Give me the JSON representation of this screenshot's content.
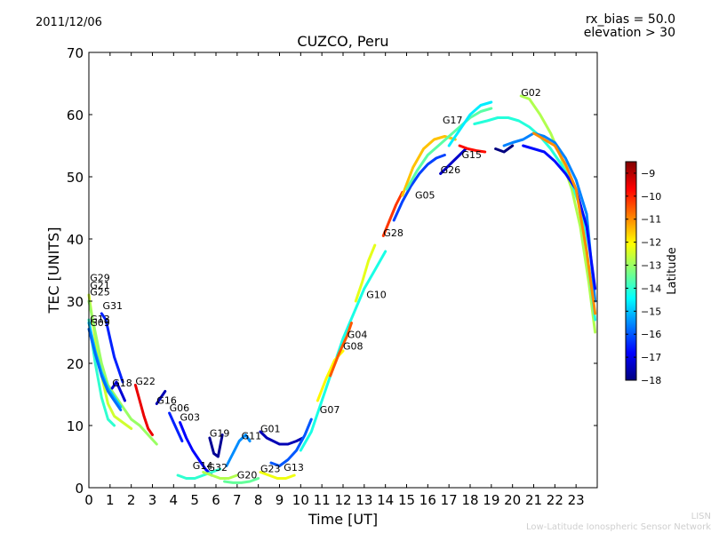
{
  "header": {
    "date": "2011/12/06",
    "bias_note": "rx_bias = 50.0",
    "elevation_note": "elevation > 30"
  },
  "footer": {
    "credit_short": "LISN",
    "credit_long": "Low-Latitude Ionospheric Sensor Network"
  },
  "chart_data": {
    "type": "scatter",
    "title": "CUZCO, Peru",
    "xlabel": "Time [UT]",
    "ylabel": "TEC [UNITS]",
    "xlim": [
      0,
      24
    ],
    "ylim": [
      0,
      70
    ],
    "xticks": [
      0,
      1,
      2,
      3,
      4,
      5,
      6,
      7,
      8,
      9,
      10,
      11,
      12,
      13,
      14,
      15,
      16,
      17,
      18,
      19,
      20,
      21,
      22,
      23
    ],
    "yticks": [
      0,
      10,
      20,
      30,
      40,
      50,
      60,
      70
    ],
    "colorbar": {
      "label": "Latitude",
      "range": [
        -18,
        -8.5
      ],
      "ticks": [
        -9,
        -10,
        -11,
        -12,
        -13,
        -14,
        -15,
        -16,
        -17,
        -18
      ],
      "colors": [
        "#00007f",
        "#0000ff",
        "#007fff",
        "#00ffff",
        "#7fff7f",
        "#ffff00",
        "#ff7f00",
        "#ff0000",
        "#7f0000"
      ]
    },
    "satellite_labels": [
      {
        "name": "G29",
        "x": 0.05,
        "y": 33.2
      },
      {
        "name": "G21",
        "x": 0.05,
        "y": 32.0
      },
      {
        "name": "G25",
        "x": 0.05,
        "y": 30.9
      },
      {
        "name": "G31",
        "x": 0.65,
        "y": 28.7
      },
      {
        "name": "G13",
        "x": 0.05,
        "y": 26.6
      },
      {
        "name": "G09",
        "x": 0.05,
        "y": 26.0
      },
      {
        "name": "G18",
        "x": 1.1,
        "y": 16.3
      },
      {
        "name": "G22",
        "x": 2.2,
        "y": 16.6
      },
      {
        "name": "G16",
        "x": 3.2,
        "y": 13.5
      },
      {
        "name": "G06",
        "x": 3.8,
        "y": 12.3
      },
      {
        "name": "G03",
        "x": 4.3,
        "y": 10.8
      },
      {
        "name": "G19",
        "x": 5.7,
        "y": 8.2
      },
      {
        "name": "G11",
        "x": 7.2,
        "y": 7.8
      },
      {
        "name": "G01",
        "x": 8.1,
        "y": 8.9
      },
      {
        "name": "G14",
        "x": 4.9,
        "y": 3.0
      },
      {
        "name": "G32",
        "x": 5.6,
        "y": 2.7
      },
      {
        "name": "G20",
        "x": 7.0,
        "y": 1.5
      },
      {
        "name": "G23",
        "x": 8.1,
        "y": 2.5
      },
      {
        "name": "G13",
        "x": 9.2,
        "y": 2.7
      },
      {
        "name": "G07",
        "x": 10.9,
        "y": 12.0
      },
      {
        "name": "G08",
        "x": 12.0,
        "y": 22.2
      },
      {
        "name": "G04",
        "x": 12.2,
        "y": 24.1
      },
      {
        "name": "G10",
        "x": 13.1,
        "y": 30.5
      },
      {
        "name": "G28",
        "x": 13.9,
        "y": 40.4
      },
      {
        "name": "G05",
        "x": 15.4,
        "y": 46.5
      },
      {
        "name": "G26",
        "x": 16.6,
        "y": 50.6
      },
      {
        "name": "G15",
        "x": 17.6,
        "y": 53.0
      },
      {
        "name": "G17",
        "x": 16.7,
        "y": 58.6
      },
      {
        "name": "G02",
        "x": 20.4,
        "y": 63.0
      }
    ],
    "series": [
      {
        "name": "G29",
        "latitude": -12.5,
        "x": [
          0.0,
          0.3,
          0.6,
          0.9,
          1.2,
          1.6,
          2.0
        ],
        "y": [
          31.0,
          24.0,
          18.0,
          13.5,
          11.5,
          10.5,
          9.5
        ]
      },
      {
        "name": "G21",
        "latitude": -14.0,
        "x": [
          0.0,
          0.3,
          0.6,
          0.9,
          1.2
        ],
        "y": [
          27.0,
          20.0,
          14.5,
          11.0,
          10.0
        ]
      },
      {
        "name": "G25",
        "latitude": -13.0,
        "x": [
          0.0,
          0.3,
          0.6,
          0.9,
          1.2,
          1.6,
          2.0,
          2.4,
          2.8,
          3.2
        ],
        "y": [
          30.0,
          25.0,
          20.0,
          16.5,
          15.0,
          13.0,
          11.0,
          10.0,
          8.5,
          7.0
        ]
      },
      {
        "name": "G31",
        "latitude": -16.5,
        "x": [
          0.6,
          0.8,
          1.0,
          1.2,
          1.4,
          1.6
        ],
        "y": [
          28.0,
          27.0,
          24.0,
          21.0,
          19.0,
          17.0
        ]
      },
      {
        "name": "G13",
        "latitude": -15.0,
        "x": [
          0.0,
          0.3,
          0.6,
          0.9,
          1.2,
          1.5
        ],
        "y": [
          26.5,
          22.0,
          18.5,
          16.0,
          14.5,
          13.0
        ]
      },
      {
        "name": "G09",
        "latitude": -15.8,
        "x": [
          0.0,
          0.3,
          0.6,
          0.9,
          1.2,
          1.5
        ],
        "y": [
          25.5,
          21.5,
          18.0,
          15.5,
          14.0,
          12.5
        ]
      },
      {
        "name": "G18",
        "latitude": -17.2,
        "x": [
          1.1,
          1.3,
          1.5,
          1.7
        ],
        "y": [
          16.0,
          17.0,
          15.5,
          14.0
        ]
      },
      {
        "name": "G22",
        "latitude": -9.5,
        "x": [
          2.2,
          2.4,
          2.6,
          2.8,
          3.0
        ],
        "y": [
          16.5,
          14.0,
          11.5,
          9.5,
          8.5
        ]
      },
      {
        "name": "G16",
        "latitude": -17.5,
        "x": [
          3.2,
          3.4,
          3.6
        ],
        "y": [
          13.5,
          14.5,
          15.5
        ]
      },
      {
        "name": "G06",
        "latitude": -16.5,
        "x": [
          3.8,
          4.0,
          4.2,
          4.4
        ],
        "y": [
          12.0,
          10.5,
          9.0,
          7.5
        ]
      },
      {
        "name": "G03",
        "latitude": -16.8,
        "x": [
          4.3,
          4.6,
          4.9,
          5.2,
          5.5,
          5.8
        ],
        "y": [
          10.5,
          8.0,
          6.0,
          4.5,
          3.0,
          2.0
        ]
      },
      {
        "name": "G19",
        "latitude": -17.8,
        "x": [
          5.7,
          5.9,
          6.1,
          6.3
        ],
        "y": [
          8.0,
          5.5,
          5.0,
          8.5
        ]
      },
      {
        "name": "G11",
        "latitude": -15.5,
        "x": [
          6.5,
          6.8,
          7.1,
          7.4,
          7.6
        ],
        "y": [
          3.5,
          5.5,
          7.5,
          8.5,
          7.5
        ]
      },
      {
        "name": "G01",
        "latitude": -17.5,
        "x": [
          8.1,
          8.4,
          8.7,
          9.0,
          9.4,
          9.8,
          10.1
        ],
        "y": [
          9.0,
          8.0,
          7.5,
          7.0,
          7.0,
          7.5,
          8.0
        ]
      },
      {
        "name": "G14",
        "latitude": -14.0,
        "x": [
          4.2,
          4.6,
          5.0,
          5.4,
          5.8,
          6.2
        ],
        "y": [
          2.0,
          1.5,
          1.5,
          2.0,
          2.5,
          3.0
        ]
      },
      {
        "name": "G32",
        "latitude": -12.8,
        "x": [
          5.4,
          5.8,
          6.2,
          6.6,
          7.0
        ],
        "y": [
          2.5,
          2.0,
          1.5,
          1.5,
          2.0
        ]
      },
      {
        "name": "G20",
        "latitude": -13.5,
        "x": [
          6.4,
          6.8,
          7.2,
          7.6,
          8.0
        ],
        "y": [
          1.0,
          0.8,
          0.8,
          1.0,
          1.5
        ]
      },
      {
        "name": "G23",
        "latitude": -12.2,
        "x": [
          8.1,
          8.5,
          8.9,
          9.3,
          9.7
        ],
        "y": [
          2.5,
          2.0,
          1.5,
          1.5,
          2.0
        ]
      },
      {
        "name": "G13b",
        "latitude": -16.0,
        "x": [
          8.6,
          9.0,
          9.4,
          9.8,
          10.2,
          10.5
        ],
        "y": [
          4.0,
          3.5,
          4.5,
          6.0,
          8.5,
          11.0
        ]
      },
      {
        "name": "G07",
        "latitude": -14.2,
        "x": [
          10.0,
          10.5,
          11.0,
          11.5,
          12.0,
          12.5,
          13.0,
          13.5,
          14.0
        ],
        "y": [
          6.0,
          9.0,
          14.0,
          19.0,
          24.0,
          28.0,
          32.0,
          35.0,
          38.0
        ]
      },
      {
        "name": "G08",
        "latitude": -12.0,
        "x": [
          10.8,
          11.2,
          11.6,
          12.0
        ],
        "y": [
          14.0,
          17.5,
          20.5,
          22.0
        ]
      },
      {
        "name": "G04",
        "latitude": -10.5,
        "x": [
          11.4,
          11.8,
          12.2,
          12.4
        ],
        "y": [
          18.0,
          21.5,
          24.5,
          26.5
        ]
      },
      {
        "name": "G10",
        "latitude": -12.3,
        "x": [
          12.6,
          12.9,
          13.2,
          13.5
        ],
        "y": [
          30.0,
          33.0,
          36.5,
          39.0
        ]
      },
      {
        "name": "G28",
        "latitude": -10.2,
        "x": [
          13.9,
          14.2,
          14.5,
          14.8
        ],
        "y": [
          40.5,
          43.0,
          45.5,
          47.5
        ]
      },
      {
        "name": "G05",
        "latitude": -16.2,
        "x": [
          14.4,
          14.8,
          15.2,
          15.6,
          16.0,
          16.4,
          16.8
        ],
        "y": [
          43.0,
          46.0,
          48.5,
          50.5,
          52.0,
          53.0,
          53.5
        ]
      },
      {
        "name": "G26",
        "latitude": -17.3,
        "x": [
          16.6,
          16.9,
          17.2,
          17.5,
          17.8
        ],
        "y": [
          50.5,
          51.5,
          52.5,
          53.5,
          54.5
        ]
      },
      {
        "name": "G15",
        "latitude": -9.8,
        "x": [
          17.5,
          17.9,
          18.3,
          18.7
        ],
        "y": [
          55.0,
          54.5,
          54.2,
          54.0
        ]
      },
      {
        "name": "G17",
        "latitude": -11.5,
        "x": [
          14.8,
          15.3,
          15.8,
          16.3,
          16.8,
          17.3
        ],
        "y": [
          47.0,
          51.5,
          54.5,
          56.0,
          56.5,
          56.0
        ]
      },
      {
        "name": "G17b",
        "latitude": -13.6,
        "x": [
          15.0,
          15.5,
          16.0,
          16.5,
          17.0,
          17.5,
          18.0,
          18.5,
          19.0
        ],
        "y": [
          48.0,
          51.0,
          53.5,
          55.0,
          56.5,
          58.0,
          59.5,
          60.5,
          61.0
        ]
      },
      {
        "name": "G17c",
        "latitude": -14.6,
        "x": [
          17.0,
          17.5,
          18.0,
          18.5,
          19.0
        ],
        "y": [
          55.0,
          57.5,
          60.0,
          61.5,
          62.0
        ]
      },
      {
        "name": "G02",
        "latitude": -12.8,
        "x": [
          20.4,
          20.8,
          21.3,
          21.8,
          22.3,
          22.8,
          23.2,
          23.6,
          23.9
        ],
        "y": [
          63.0,
          62.5,
          60.0,
          57.0,
          53.0,
          48.0,
          42.0,
          33.0,
          25.0
        ]
      },
      {
        "name": "G02b",
        "latitude": -14.1,
        "x": [
          18.2,
          18.8,
          19.3,
          19.8,
          20.3,
          20.8,
          21.3,
          21.8,
          22.3,
          22.8,
          23.3,
          23.9
        ],
        "y": [
          58.5,
          59.0,
          59.5,
          59.5,
          59.0,
          58.0,
          56.5,
          54.5,
          52.0,
          49.0,
          44.0,
          27.0
        ]
      },
      {
        "name": "G02c",
        "latitude": -15.6,
        "x": [
          19.6,
          20.0,
          20.5,
          21.0,
          21.5,
          22.0,
          22.5,
          23.0,
          23.5,
          23.9
        ],
        "y": [
          55.0,
          55.5,
          56.0,
          57.0,
          56.5,
          55.5,
          53.0,
          49.5,
          44.0,
          30.0
        ]
      },
      {
        "name": "G02d",
        "latitude": -16.7,
        "x": [
          20.5,
          21.0,
          21.5,
          22.0,
          22.5,
          23.0,
          23.5,
          23.9
        ],
        "y": [
          55.0,
          54.5,
          54.0,
          52.5,
          50.5,
          48.0,
          42.0,
          32.0
        ]
      },
      {
        "name": "G02e",
        "latitude": -11.0,
        "x": [
          21.0,
          21.5,
          22.0,
          22.5,
          23.0,
          23.5,
          23.9
        ],
        "y": [
          57.0,
          56.0,
          55.0,
          52.0,
          48.0,
          38.0,
          28.0
        ]
      },
      {
        "name": "G02f",
        "latitude": -18.0,
        "x": [
          19.2,
          19.6,
          20.0
        ],
        "y": [
          54.5,
          54.0,
          55.0
        ]
      }
    ]
  }
}
